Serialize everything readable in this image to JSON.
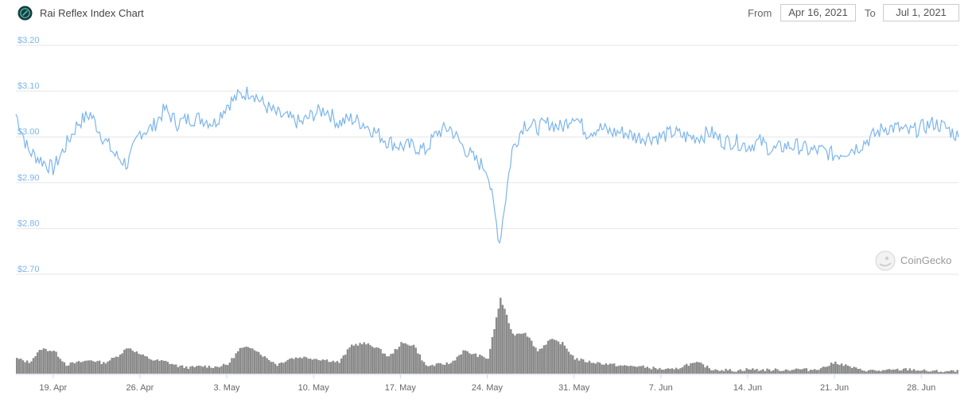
{
  "header": {
    "title": "Rai Reflex Index Chart",
    "from_label": "From",
    "from_value": "Apr 16, 2021",
    "to_label": "To",
    "to_value": "Jul 1, 2021",
    "logo_icon": "rai-logo-icon"
  },
  "watermark": {
    "text": "CoinGecko",
    "icon": "gecko-icon"
  },
  "colors": {
    "line": "#7cb5ec",
    "volume": "#8a8a8a",
    "grid": "#e6e6e6",
    "ytick": "#7cb5ec"
  },
  "chart_data": [
    {
      "type": "line",
      "title": "",
      "ylim": [
        2.7,
        3.2
      ],
      "yticks": [
        "$3.20",
        "$3.10",
        "$3.00",
        "$2.90",
        "$2.80",
        "$2.70"
      ],
      "ytick_values": [
        3.2,
        3.1,
        3.0,
        2.9,
        2.8,
        2.7
      ],
      "grid": true,
      "x_range_days": [
        0,
        76
      ],
      "series": [
        {
          "x": [
            0,
            1,
            2,
            3,
            4,
            5,
            6,
            7,
            8,
            9,
            10,
            11,
            12,
            13,
            14,
            15,
            16,
            17,
            18,
            19,
            20,
            21,
            22,
            23,
            24,
            25,
            26,
            27,
            28,
            29,
            30,
            31,
            32,
            33,
            34,
            35,
            36,
            37,
            38,
            39,
            40,
            41,
            42,
            43,
            44,
            45,
            46,
            47,
            48,
            49,
            50,
            51,
            52,
            53,
            54,
            55,
            56,
            57,
            58,
            59,
            60,
            61,
            62,
            63,
            64,
            65,
            66,
            67,
            68,
            69,
            70,
            71,
            72,
            73,
            74,
            75,
            76
          ],
          "y": [
            3.05,
            2.97,
            2.95,
            2.93,
            2.98,
            3.03,
            3.05,
            3.0,
            2.96,
            2.94,
            3.01,
            3.02,
            3.06,
            3.03,
            3.04,
            3.04,
            3.03,
            3.07,
            3.09,
            3.1,
            3.07,
            3.05,
            3.04,
            3.03,
            3.05,
            3.06,
            3.03,
            3.04,
            3.03,
            3.01,
            2.99,
            2.98,
            2.98,
            2.97,
            3.01,
            3.02,
            2.98,
            2.95,
            2.93,
            2.77,
            2.97,
            3.03,
            3.02,
            3.03,
            3.02,
            3.05,
            3.01,
            3.02,
            3.01,
            3.01,
            3.0,
            3.0,
            3.0,
            3.01,
            3.0,
            3.0,
            3.01,
            2.99,
            2.99,
            2.98,
            2.99,
            2.97,
            2.98,
            2.98,
            2.97,
            2.97,
            2.96,
            2.97,
            2.98,
            3.0,
            3.02,
            3.02,
            3.01,
            3.02,
            3.03,
            3.02,
            3.0
          ]
        }
      ],
      "x_tick_labels": [
        "19. Apr",
        "26. Apr",
        "3. May",
        "10. May",
        "17. May",
        "24. May",
        "31. May",
        "7. Jun",
        "14. Jun",
        "21. Jun",
        "28. Jun"
      ],
      "x_tick_days": [
        3,
        10,
        17,
        24,
        31,
        38,
        45,
        52,
        59,
        66,
        73
      ]
    },
    {
      "type": "area",
      "title": "",
      "ylabel": "",
      "grid": false,
      "series": [
        {
          "x": [
            0,
            1,
            2,
            3,
            4,
            5,
            6,
            7,
            8,
            9,
            10,
            11,
            12,
            13,
            14,
            15,
            16,
            17,
            18,
            19,
            20,
            21,
            22,
            23,
            24,
            25,
            26,
            27,
            28,
            29,
            30,
            31,
            32,
            33,
            34,
            35,
            36,
            37,
            38,
            39,
            40,
            41,
            42,
            43,
            44,
            45,
            46,
            47,
            48,
            49,
            50,
            51,
            52,
            53,
            54,
            55,
            56,
            57,
            58,
            59,
            60,
            61,
            62,
            63,
            64,
            65,
            66,
            67,
            68,
            69,
            70,
            71,
            72,
            73,
            74,
            75,
            76
          ],
          "y": [
            0.2,
            0.15,
            0.33,
            0.3,
            0.12,
            0.15,
            0.18,
            0.14,
            0.22,
            0.35,
            0.25,
            0.18,
            0.16,
            0.1,
            0.08,
            0.1,
            0.09,
            0.12,
            0.33,
            0.35,
            0.22,
            0.12,
            0.2,
            0.22,
            0.2,
            0.18,
            0.15,
            0.38,
            0.4,
            0.35,
            0.22,
            0.4,
            0.38,
            0.1,
            0.12,
            0.14,
            0.3,
            0.25,
            0.2,
            1.0,
            0.52,
            0.55,
            0.3,
            0.45,
            0.4,
            0.2,
            0.16,
            0.14,
            0.12,
            0.1,
            0.1,
            0.08,
            0.06,
            0.05,
            0.12,
            0.14,
            0.06,
            0.05,
            0.04,
            0.06,
            0.05,
            0.05,
            0.05,
            0.06,
            0.05,
            0.08,
            0.15,
            0.1,
            0.05,
            0.04,
            0.04,
            0.05,
            0.06,
            0.04,
            0.03,
            0.03,
            0.03
          ]
        }
      ]
    }
  ]
}
